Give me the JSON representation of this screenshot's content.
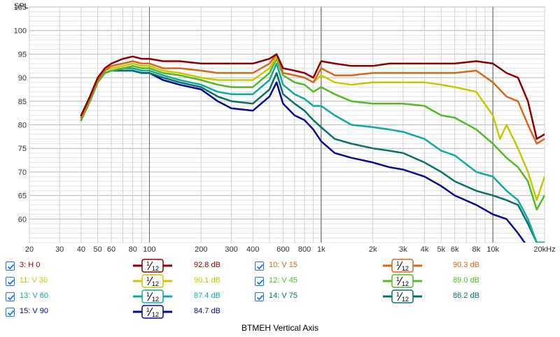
{
  "chart_data": {
    "type": "line",
    "title": "BTMEH Vertical Axis",
    "ylabel": "SPL",
    "xscale": "log",
    "xlim": [
      20,
      20000
    ],
    "ylim": [
      55,
      105
    ],
    "yticks": [
      60,
      65,
      70,
      75,
      80,
      85,
      90,
      95,
      100,
      105
    ],
    "xticks": [
      {
        "v": 20,
        "label": "20"
      },
      {
        "v": 30,
        "label": "30"
      },
      {
        "v": 40,
        "label": "40"
      },
      {
        "v": 50,
        "label": "50"
      },
      {
        "v": 60,
        "label": "60"
      },
      {
        "v": 80,
        "label": "80"
      },
      {
        "v": 100,
        "label": "100"
      },
      {
        "v": 200,
        "label": "200"
      },
      {
        "v": 300,
        "label": "300"
      },
      {
        "v": 400,
        "label": "400"
      },
      {
        "v": 600,
        "label": "600"
      },
      {
        "v": 800,
        "label": "800"
      },
      {
        "v": 1000,
        "label": "1k"
      },
      {
        "v": 2000,
        "label": "2k"
      },
      {
        "v": 3000,
        "label": "3k"
      },
      {
        "v": 4000,
        "label": "4k"
      },
      {
        "v": 5000,
        "label": "5k"
      },
      {
        "v": 6000,
        "label": "6k"
      },
      {
        "v": 8000,
        "label": "8k"
      },
      {
        "v": 10000,
        "label": "10k"
      },
      {
        "v": 20000,
        "label": "20kHz"
      }
    ],
    "grid": true,
    "legend_placement": "bottom",
    "smoothing_label": "1/12",
    "series": [
      {
        "name": "3: H 0",
        "level": "92.8 dB",
        "color": "#8b0000",
        "x": [
          40,
          45,
          50,
          55,
          60,
          70,
          80,
          90,
          100,
          120,
          150,
          200,
          250,
          300,
          400,
          500,
          550,
          600,
          700,
          800,
          900,
          1000,
          1200,
          1500,
          2000,
          2500,
          3000,
          4000,
          5000,
          6000,
          8000,
          10000,
          12000,
          14000,
          16000,
          18000,
          20000
        ],
        "y": [
          82,
          86,
          90,
          92,
          93,
          94,
          94.5,
          94,
          94,
          93.5,
          93.5,
          93,
          93,
          93,
          93,
          94,
          95,
          92,
          91.5,
          91,
          90,
          93.5,
          93,
          92.5,
          92.5,
          93,
          93,
          93,
          93,
          93,
          93.5,
          93,
          91,
          90,
          85,
          77,
          78
        ]
      },
      {
        "name": "10: V 15",
        "level": "90.3 dB",
        "color": "#d2691e",
        "x": [
          40,
          45,
          50,
          55,
          60,
          70,
          80,
          90,
          100,
          120,
          150,
          200,
          250,
          300,
          400,
          500,
          550,
          600,
          700,
          800,
          900,
          1000,
          1200,
          1500,
          2000,
          2500,
          3000,
          4000,
          5000,
          6000,
          8000,
          10000,
          12000,
          14000,
          16000,
          18000,
          20000
        ],
        "y": [
          81.5,
          85.5,
          89.5,
          91.5,
          92.5,
          93,
          93.5,
          93,
          93,
          92,
          92,
          91.5,
          91,
          91,
          91,
          93,
          95,
          91,
          90.5,
          90,
          89,
          92,
          90.5,
          90.5,
          91,
          91,
          91,
          91,
          91,
          91,
          91.5,
          89,
          86,
          85,
          80,
          76,
          77
        ]
      },
      {
        "name": "11: V 30",
        "level": "90.1 dB",
        "color": "#c8c800",
        "x": [
          40,
          45,
          50,
          55,
          60,
          70,
          80,
          90,
          100,
          120,
          150,
          200,
          250,
          300,
          400,
          500,
          550,
          600,
          700,
          800,
          900,
          1000,
          1200,
          1500,
          2000,
          2500,
          3000,
          4000,
          5000,
          6000,
          8000,
          10000,
          11000,
          12000,
          14000,
          16000,
          18000,
          20000
        ],
        "y": [
          81.5,
          85.5,
          89.5,
          91.5,
          92,
          92.5,
          93,
          92.5,
          92.5,
          91.5,
          91,
          90,
          89.5,
          89.5,
          89.5,
          92,
          94.5,
          91,
          90.5,
          90,
          89,
          90.5,
          89,
          88.5,
          89,
          89,
          89,
          89,
          88.5,
          88,
          87,
          82,
          77,
          80,
          75,
          70,
          64,
          69
        ]
      },
      {
        "name": "12: V 45",
        "level": "89.0 dB",
        "color": "#55b827",
        "x": [
          40,
          45,
          50,
          55,
          60,
          70,
          80,
          90,
          100,
          120,
          150,
          200,
          250,
          300,
          400,
          500,
          550,
          600,
          700,
          800,
          900,
          1000,
          1200,
          1500,
          2000,
          2500,
          3000,
          4000,
          5000,
          6000,
          8000,
          10000,
          12000,
          14000,
          16000,
          18000,
          20000
        ],
        "y": [
          81,
          85,
          89,
          91,
          91.5,
          92,
          92.5,
          92,
          92,
          91,
          90.5,
          89.5,
          88.5,
          88,
          88,
          91,
          94,
          90.5,
          89,
          88.5,
          87,
          88,
          86.5,
          85,
          84.5,
          84.5,
          84.5,
          84,
          82,
          81.5,
          79,
          76,
          73,
          71,
          68,
          62,
          65
        ]
      },
      {
        "name": "13: V 60",
        "level": "87.4 dB",
        "color": "#11a8a0",
        "x": [
          40,
          45,
          50,
          55,
          60,
          70,
          80,
          90,
          100,
          120,
          150,
          200,
          250,
          300,
          400,
          500,
          550,
          600,
          700,
          800,
          900,
          1000,
          1200,
          1500,
          2000,
          2500,
          3000,
          4000,
          5000,
          6000,
          8000,
          10000,
          12000,
          14000,
          16000,
          18000,
          20000
        ],
        "y": [
          81,
          85,
          89,
          91,
          91.5,
          92,
          92,
          91.5,
          91.5,
          90.5,
          89.5,
          88.5,
          87,
          86.5,
          86.5,
          89.5,
          93,
          88.5,
          86.5,
          85.5,
          84,
          84,
          82,
          80,
          79.5,
          79,
          78.5,
          77,
          74.5,
          73.5,
          70,
          69,
          66,
          64,
          60,
          55,
          55
        ]
      },
      {
        "name": "14: V 75",
        "level": "86.2 dB",
        "color": "#0b6e6b",
        "x": [
          40,
          45,
          50,
          55,
          60,
          70,
          80,
          90,
          100,
          120,
          150,
          200,
          250,
          300,
          400,
          500,
          550,
          600,
          700,
          800,
          900,
          1000,
          1200,
          1500,
          2000,
          2500,
          3000,
          4000,
          5000,
          6000,
          8000,
          10000,
          12000,
          14000,
          16000,
          18000,
          20000
        ],
        "y": [
          81,
          85,
          89,
          91,
          91.5,
          91.5,
          91.5,
          91,
          91,
          90,
          89,
          88,
          86,
          85,
          84.5,
          87.5,
          91,
          86.5,
          84.5,
          83,
          81,
          79.5,
          77,
          76,
          75,
          74.5,
          74,
          72,
          70,
          68,
          66,
          65,
          64,
          63,
          59,
          55,
          55
        ]
      },
      {
        "name": "15: V 90",
        "level": "84.7 dB",
        "color": "#0a0a8c",
        "x": [
          40,
          45,
          50,
          55,
          60,
          70,
          80,
          90,
          100,
          120,
          150,
          200,
          250,
          300,
          400,
          500,
          550,
          600,
          700,
          800,
          900,
          1000,
          1200,
          1500,
          2000,
          2500,
          3000,
          4000,
          5000,
          6000,
          8000,
          10000,
          12000,
          14000,
          16000,
          18000,
          20000
        ],
        "y": [
          81,
          85,
          89,
          91,
          91.5,
          91.5,
          91.5,
          91,
          91,
          89.5,
          88.5,
          87.5,
          85,
          83.5,
          83,
          86,
          89,
          84.5,
          82,
          81,
          79,
          76.5,
          74,
          73,
          72,
          71,
          70.5,
          69,
          67,
          65,
          63,
          61,
          60,
          57,
          54,
          53,
          53
        ]
      }
    ]
  },
  "legend": {
    "rows": [
      [
        {
          "label": "3: H 0",
          "value": "92.8 dB",
          "s": 0
        },
        {
          "label": "10: V 15",
          "value": "90.3 dB",
          "s": 1
        }
      ],
      [
        {
          "label": "11: V 30",
          "value": "90.1 dB",
          "s": 2
        },
        {
          "label": "12: V 45",
          "value": "89.0 dB",
          "s": 3
        }
      ],
      [
        {
          "label": "13: V 60",
          "value": "87.4 dB",
          "s": 4
        },
        {
          "label": "14: V 75",
          "value": "86.2 dB",
          "s": 5
        }
      ],
      [
        {
          "label": "15: V 90",
          "value": "84.7 dB",
          "s": 6
        }
      ]
    ],
    "smoothing_numerator": "1",
    "smoothing_denominator": "12"
  }
}
